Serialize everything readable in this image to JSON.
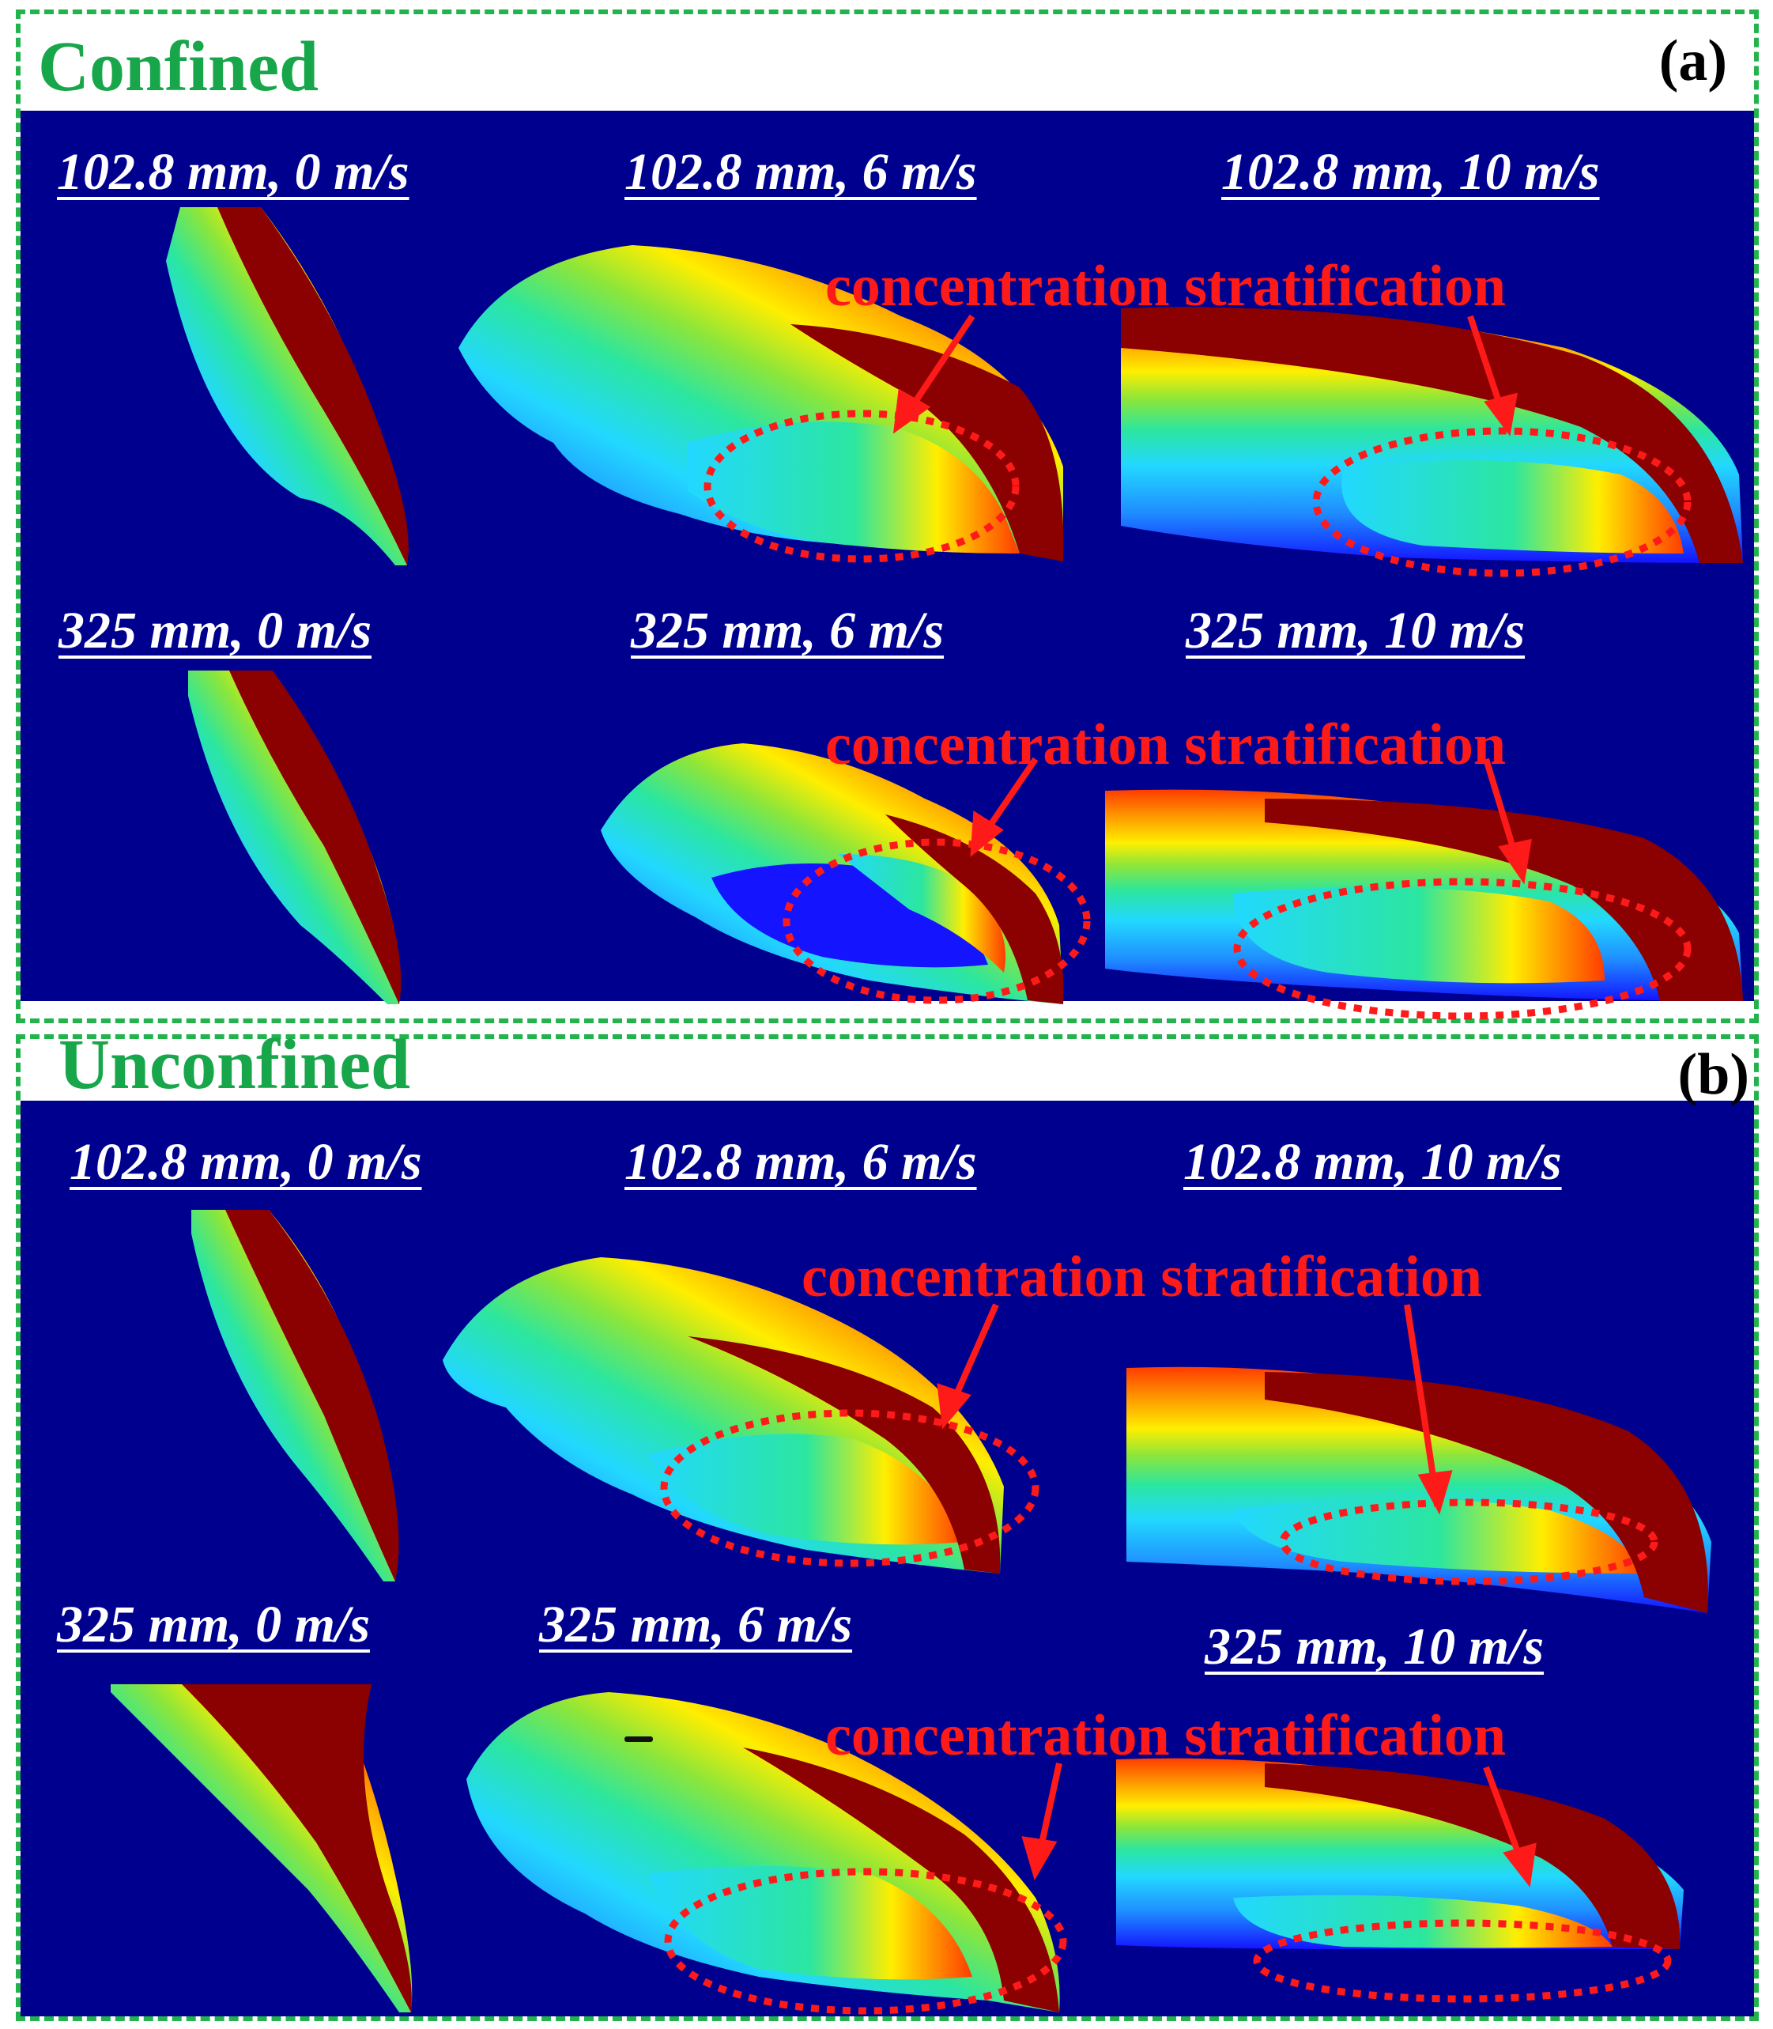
{
  "panels": [
    {
      "title": "Confined",
      "letter": "(a)",
      "labels": [
        "102.8 mm, 0 m/s",
        "102.8 mm, 6 m/s",
        "102.8 mm, 10 m/s",
        "325 mm, 0 m/s",
        "325 mm, 6 m/s",
        "325 mm, 10 m/s"
      ],
      "annotations": [
        "concentration stratification",
        "concentration stratification"
      ]
    },
    {
      "title": "Unconfined",
      "letter": "(b)",
      "labels": [
        "102.8 mm, 0 m/s",
        "102.8 mm, 6 m/s",
        "102.8 mm, 10 m/s",
        "325 mm, 0 m/s",
        "325 mm, 6 m/s",
        "325 mm, 10 m/s"
      ],
      "annotations": [
        "concentration stratification",
        "concentration stratification"
      ]
    }
  ],
  "colors": {
    "frame": "#22b34c",
    "title": "#17a64a",
    "background": "#00008f",
    "annotation": "#ff1a1a",
    "contour_scale": [
      "#1414ff",
      "#1f8fff",
      "#22d8ff",
      "#2be6a0",
      "#8ce63a",
      "#ffee00",
      "#ffa200",
      "#ff3c00",
      "#e01000",
      "#8b0000"
    ]
  }
}
